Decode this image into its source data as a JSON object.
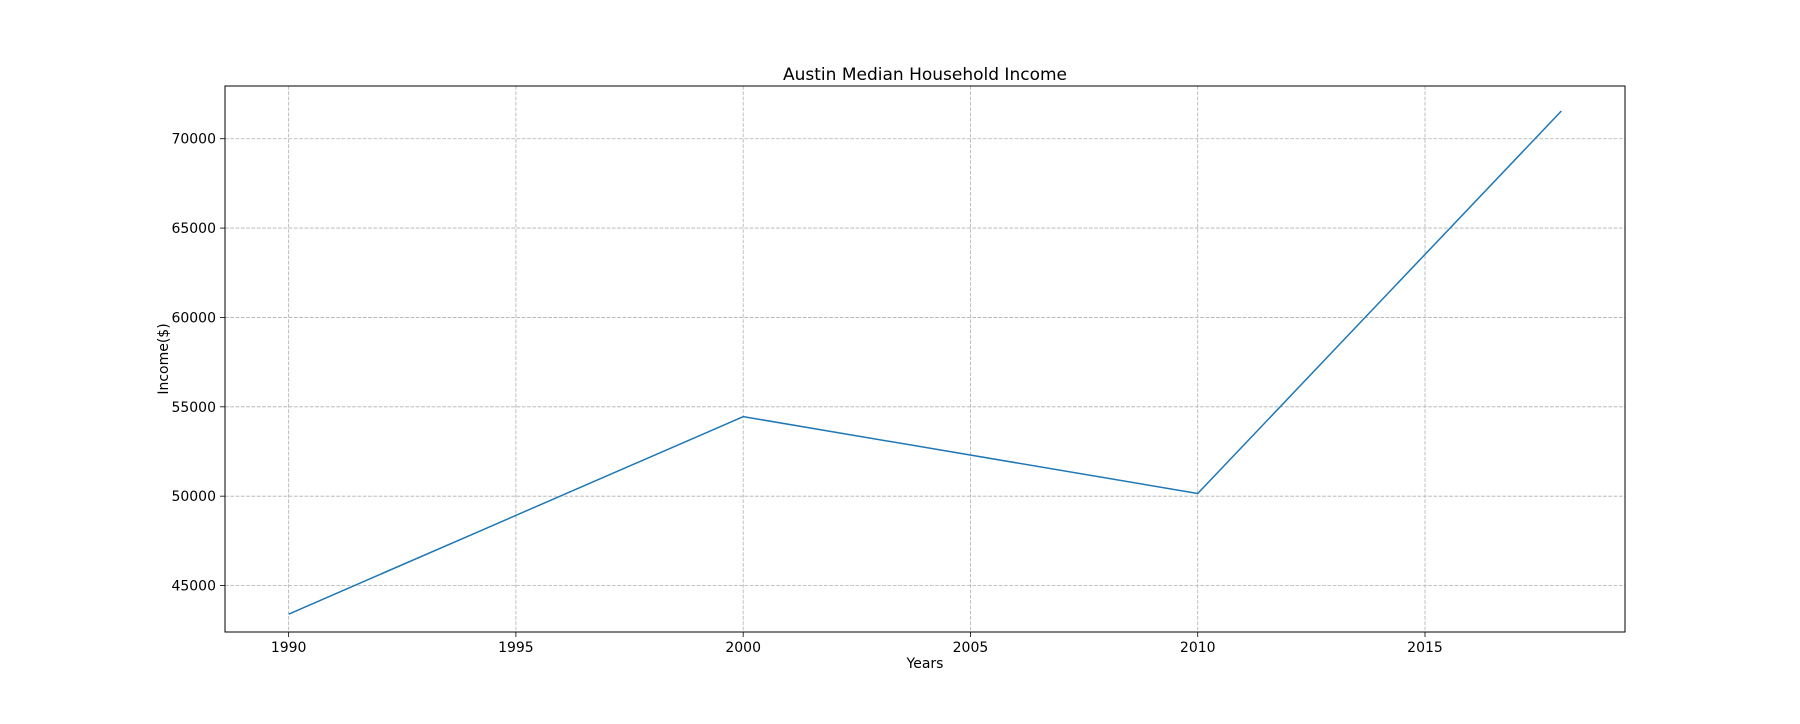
{
  "chart_data": {
    "type": "line",
    "title": "Austin Median Household Income",
    "xlabel": "Years",
    "ylabel": "Income($)",
    "x": [
      1990,
      2000,
      2010,
      2018
    ],
    "series": [
      {
        "values": [
          43400,
          54450,
          50150,
          71550
        ],
        "color": "#1f77b4"
      }
    ],
    "xlim": [
      1988.6,
      2019.4
    ],
    "ylim": [
      42400,
      72950
    ],
    "xticks": [
      1990,
      1995,
      2000,
      2005,
      2010,
      2015
    ],
    "yticks": [
      45000,
      50000,
      55000,
      60000,
      65000,
      70000
    ],
    "grid": true,
    "legend": "none"
  }
}
